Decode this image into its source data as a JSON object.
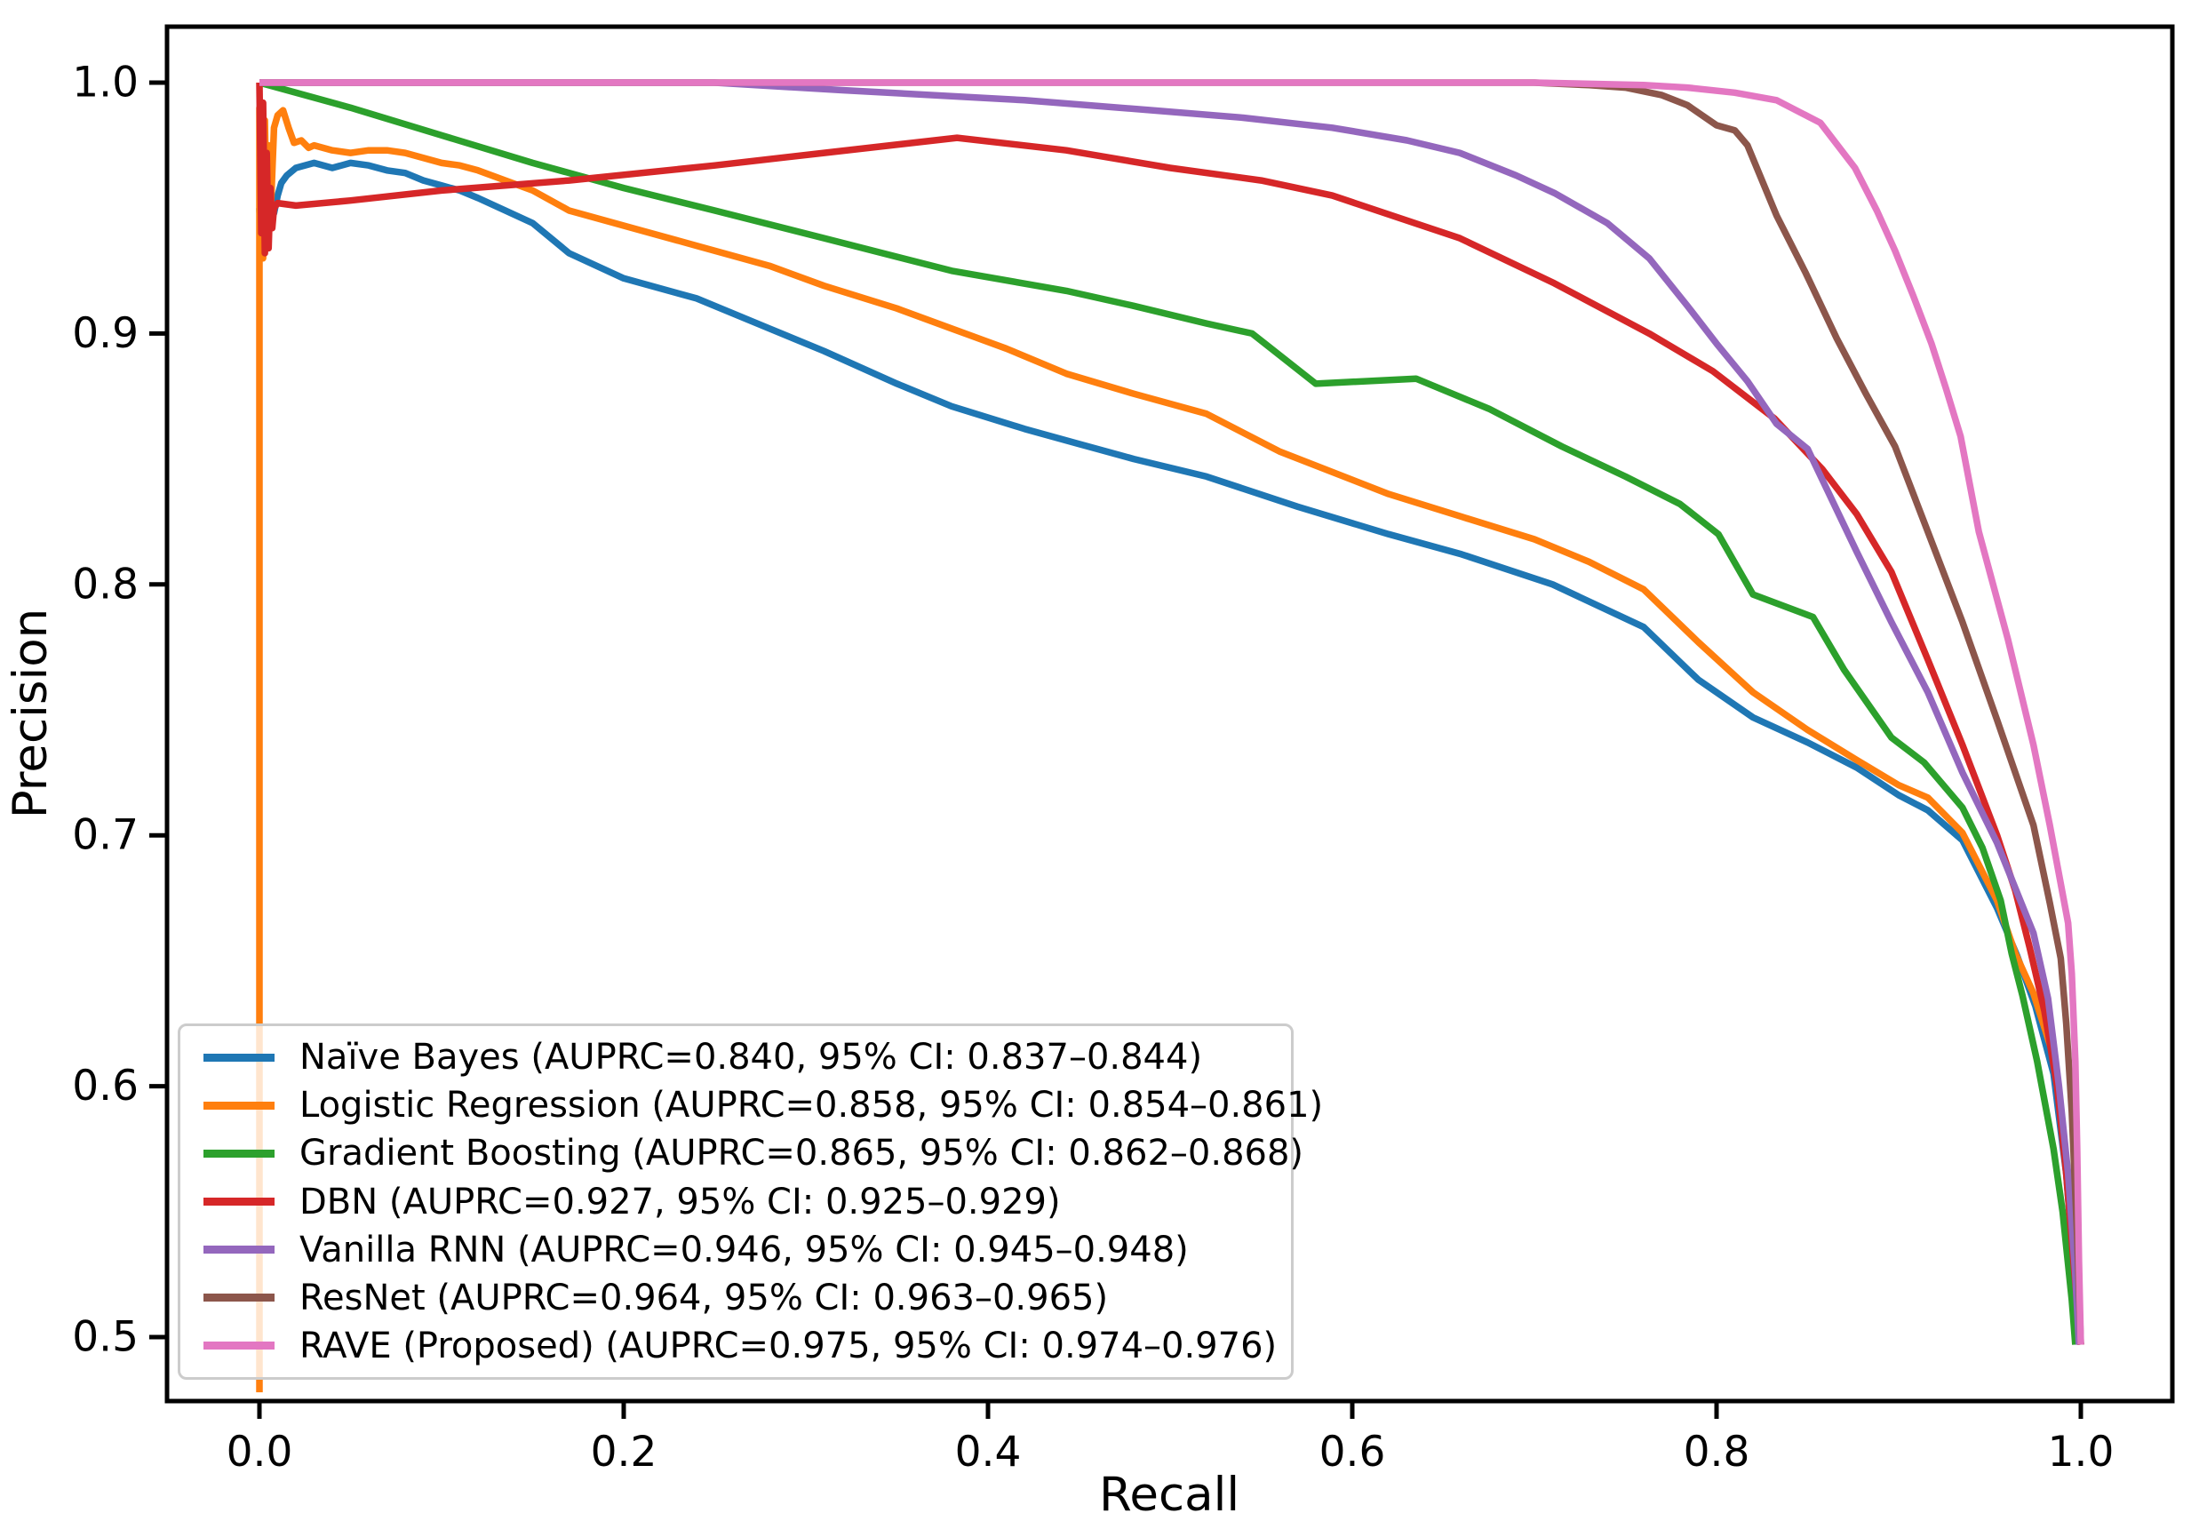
{
  "figure": {
    "background": "#ffffff",
    "spine_color": "#000000",
    "tick_color": "#000000"
  },
  "chart_data": {
    "type": "line",
    "title": "",
    "xlabel": "Recall",
    "ylabel": "Precision",
    "grid": false,
    "legend_position": "lower left",
    "xlim": [
      -0.05,
      1.05
    ],
    "ylim": [
      0.4745,
      1.0225
    ],
    "x_ticks": [
      0.0,
      0.2,
      0.4,
      0.6,
      0.8,
      1.0
    ],
    "x_tick_labels": [
      "0.0",
      "0.2",
      "0.4",
      "0.6",
      "0.8",
      "1.0"
    ],
    "y_ticks": [
      0.5,
      0.6,
      0.7,
      0.8,
      0.9,
      1.0
    ],
    "y_tick_labels": [
      "0.5",
      "0.6",
      "0.7",
      "0.8",
      "0.9",
      "1.0"
    ],
    "series": [
      {
        "name": "Naive Bayes",
        "label": "Naïve Bayes (AUPRC=0.840, 95% CI: 0.837–0.844)",
        "auprc": 0.84,
        "ci_95": "0.837–0.844",
        "color": "#1f77b4",
        "points": [
          [
            0.0,
            0.95
          ],
          [
            0.001,
            0.93
          ],
          [
            0.002,
            0.958
          ],
          [
            0.003,
            0.938
          ],
          [
            0.004,
            0.955
          ],
          [
            0.005,
            0.942
          ],
          [
            0.006,
            0.952
          ],
          [
            0.008,
            0.948
          ],
          [
            0.01,
            0.955
          ],
          [
            0.012,
            0.96
          ],
          [
            0.015,
            0.963
          ],
          [
            0.02,
            0.966
          ],
          [
            0.03,
            0.968
          ],
          [
            0.04,
            0.966
          ],
          [
            0.05,
            0.968
          ],
          [
            0.06,
            0.967
          ],
          [
            0.07,
            0.965
          ],
          [
            0.08,
            0.964
          ],
          [
            0.09,
            0.961
          ],
          [
            0.1,
            0.959
          ],
          [
            0.11,
            0.957
          ],
          [
            0.12,
            0.954
          ],
          [
            0.135,
            0.949
          ],
          [
            0.15,
            0.944
          ],
          [
            0.17,
            0.932
          ],
          [
            0.2,
            0.922
          ],
          [
            0.24,
            0.914
          ],
          [
            0.28,
            0.902
          ],
          [
            0.31,
            0.893
          ],
          [
            0.35,
            0.88
          ],
          [
            0.38,
            0.871
          ],
          [
            0.42,
            0.862
          ],
          [
            0.45,
            0.856
          ],
          [
            0.48,
            0.85
          ],
          [
            0.52,
            0.843
          ],
          [
            0.57,
            0.831
          ],
          [
            0.62,
            0.82
          ],
          [
            0.66,
            0.812
          ],
          [
            0.71,
            0.8
          ],
          [
            0.76,
            0.783
          ],
          [
            0.79,
            0.762
          ],
          [
            0.82,
            0.747
          ],
          [
            0.85,
            0.737
          ],
          [
            0.877,
            0.727
          ],
          [
            0.9,
            0.716
          ],
          [
            0.916,
            0.71
          ],
          [
            0.935,
            0.698
          ],
          [
            0.954,
            0.671
          ],
          [
            0.965,
            0.652
          ],
          [
            0.975,
            0.632
          ],
          [
            0.985,
            0.605
          ],
          [
            0.992,
            0.565
          ],
          [
            0.997,
            0.52
          ],
          [
            1.0,
            0.497
          ]
        ]
      },
      {
        "name": "Logistic Regression",
        "label": "Logistic Regression (AUPRC=0.858, 95% CI: 0.854–0.861)",
        "auprc": 0.858,
        "ci_95": "0.854–0.861",
        "color": "#ff7f0e",
        "points": [
          [
            0.0,
            0.478
          ],
          [
            0.0,
            0.99
          ],
          [
            0.002,
            0.93
          ],
          [
            0.003,
            0.985
          ],
          [
            0.004,
            0.94
          ],
          [
            0.005,
            0.975
          ],
          [
            0.006,
            0.945
          ],
          [
            0.008,
            0.982
          ],
          [
            0.01,
            0.987
          ],
          [
            0.013,
            0.989
          ],
          [
            0.016,
            0.982
          ],
          [
            0.019,
            0.976
          ],
          [
            0.023,
            0.977
          ],
          [
            0.027,
            0.974
          ],
          [
            0.03,
            0.975
          ],
          [
            0.04,
            0.973
          ],
          [
            0.05,
            0.972
          ],
          [
            0.06,
            0.973
          ],
          [
            0.07,
            0.973
          ],
          [
            0.08,
            0.972
          ],
          [
            0.09,
            0.97
          ],
          [
            0.1,
            0.968
          ],
          [
            0.11,
            0.967
          ],
          [
            0.12,
            0.965
          ],
          [
            0.135,
            0.961
          ],
          [
            0.15,
            0.957
          ],
          [
            0.17,
            0.949
          ],
          [
            0.2,
            0.943
          ],
          [
            0.24,
            0.935
          ],
          [
            0.28,
            0.927
          ],
          [
            0.31,
            0.919
          ],
          [
            0.35,
            0.91
          ],
          [
            0.38,
            0.902
          ],
          [
            0.41,
            0.894
          ],
          [
            0.443,
            0.884
          ],
          [
            0.48,
            0.876
          ],
          [
            0.52,
            0.868
          ],
          [
            0.56,
            0.853
          ],
          [
            0.62,
            0.836
          ],
          [
            0.66,
            0.827
          ],
          [
            0.7,
            0.818
          ],
          [
            0.73,
            0.809
          ],
          [
            0.76,
            0.798
          ],
          [
            0.79,
            0.777
          ],
          [
            0.82,
            0.757
          ],
          [
            0.85,
            0.742
          ],
          [
            0.877,
            0.73
          ],
          [
            0.9,
            0.72
          ],
          [
            0.916,
            0.715
          ],
          [
            0.935,
            0.701
          ],
          [
            0.954,
            0.674
          ],
          [
            0.964,
            0.653
          ],
          [
            0.974,
            0.637
          ],
          [
            0.985,
            0.612
          ],
          [
            0.992,
            0.57
          ],
          [
            0.997,
            0.525
          ],
          [
            1.0,
            0.497
          ]
        ]
      },
      {
        "name": "Gradient Boosting",
        "label": "Gradient Boosting (AUPRC=0.865, 95% CI: 0.862–0.868)",
        "auprc": 0.865,
        "ci_95": "0.862–0.868",
        "color": "#2ca02c",
        "points": [
          [
            0.0,
            1.0
          ],
          [
            0.05,
            0.99
          ],
          [
            0.1,
            0.979
          ],
          [
            0.15,
            0.968
          ],
          [
            0.2,
            0.958
          ],
          [
            0.25,
            0.949
          ],
          [
            0.31,
            0.938
          ],
          [
            0.38,
            0.925
          ],
          [
            0.443,
            0.917
          ],
          [
            0.48,
            0.911
          ],
          [
            0.52,
            0.904
          ],
          [
            0.545,
            0.9
          ],
          [
            0.58,
            0.88
          ],
          [
            0.635,
            0.882
          ],
          [
            0.655,
            0.876
          ],
          [
            0.675,
            0.87
          ],
          [
            0.715,
            0.855
          ],
          [
            0.75,
            0.843
          ],
          [
            0.78,
            0.832
          ],
          [
            0.801,
            0.82
          ],
          [
            0.82,
            0.796
          ],
          [
            0.853,
            0.787
          ],
          [
            0.87,
            0.766
          ],
          [
            0.896,
            0.739
          ],
          [
            0.914,
            0.729
          ],
          [
            0.935,
            0.711
          ],
          [
            0.946,
            0.695
          ],
          [
            0.956,
            0.674
          ],
          [
            0.962,
            0.653
          ],
          [
            0.968,
            0.636
          ],
          [
            0.976,
            0.61
          ],
          [
            0.985,
            0.575
          ],
          [
            0.99,
            0.55
          ],
          [
            0.995,
            0.515
          ],
          [
            0.997,
            0.497
          ]
        ]
      },
      {
        "name": "DBN",
        "label": "DBN (AUPRC=0.927, 95% CI: 0.925–0.929)",
        "auprc": 0.927,
        "ci_95": "0.925–0.929",
        "color": "#d62728",
        "points": [
          [
            0.0,
            1.0
          ],
          [
            0.001,
            0.94
          ],
          [
            0.002,
            0.992
          ],
          [
            0.003,
            0.932
          ],
          [
            0.004,
            0.972
          ],
          [
            0.005,
            0.934
          ],
          [
            0.006,
            0.958
          ],
          [
            0.007,
            0.942
          ],
          [
            0.008,
            0.95
          ],
          [
            0.01,
            0.952
          ],
          [
            0.02,
            0.951
          ],
          [
            0.05,
            0.953
          ],
          [
            0.1,
            0.957
          ],
          [
            0.17,
            0.961
          ],
          [
            0.25,
            0.967
          ],
          [
            0.31,
            0.972
          ],
          [
            0.383,
            0.978
          ],
          [
            0.443,
            0.973
          ],
          [
            0.5,
            0.966
          ],
          [
            0.55,
            0.961
          ],
          [
            0.589,
            0.955
          ],
          [
            0.659,
            0.938
          ],
          [
            0.711,
            0.92
          ],
          [
            0.763,
            0.9
          ],
          [
            0.798,
            0.885
          ],
          [
            0.832,
            0.866
          ],
          [
            0.858,
            0.846
          ],
          [
            0.877,
            0.828
          ],
          [
            0.896,
            0.805
          ],
          [
            0.916,
            0.77
          ],
          [
            0.935,
            0.736
          ],
          [
            0.954,
            0.7
          ],
          [
            0.964,
            0.678
          ],
          [
            0.972,
            0.655
          ],
          [
            0.98,
            0.63
          ],
          [
            0.987,
            0.6
          ],
          [
            0.992,
            0.565
          ],
          [
            0.996,
            0.53
          ],
          [
            1.0,
            0.497
          ]
        ]
      },
      {
        "name": "Vanilla RNN",
        "label": "Vanilla RNN (AUPRC=0.946, 95% CI: 0.945–0.948)",
        "auprc": 0.946,
        "ci_95": "0.945–0.948",
        "color": "#9467bd",
        "points": [
          [
            0.0,
            1.0
          ],
          [
            0.25,
            1.0
          ],
          [
            0.32,
            0.997
          ],
          [
            0.42,
            0.993
          ],
          [
            0.49,
            0.989
          ],
          [
            0.54,
            0.986
          ],
          [
            0.589,
            0.982
          ],
          [
            0.63,
            0.977
          ],
          [
            0.659,
            0.972
          ],
          [
            0.69,
            0.963
          ],
          [
            0.711,
            0.956
          ],
          [
            0.74,
            0.944
          ],
          [
            0.763,
            0.93
          ],
          [
            0.784,
            0.911
          ],
          [
            0.8,
            0.896
          ],
          [
            0.817,
            0.881
          ],
          [
            0.833,
            0.864
          ],
          [
            0.85,
            0.854
          ],
          [
            0.877,
            0.813
          ],
          [
            0.896,
            0.785
          ],
          [
            0.916,
            0.757
          ],
          [
            0.935,
            0.725
          ],
          [
            0.954,
            0.697
          ],
          [
            0.974,
            0.661
          ],
          [
            0.982,
            0.635
          ],
          [
            0.988,
            0.6
          ],
          [
            0.993,
            0.565
          ],
          [
            0.997,
            0.525
          ],
          [
            0.999,
            0.497
          ]
        ]
      },
      {
        "name": "ResNet",
        "label": "ResNet (AUPRC=0.964, 95% CI: 0.963–0.965)",
        "auprc": 0.964,
        "ci_95": "0.963–0.965",
        "color": "#8c564b",
        "points": [
          [
            0.0,
            1.0
          ],
          [
            0.5,
            1.0
          ],
          [
            0.7,
            1.0
          ],
          [
            0.73,
            0.999
          ],
          [
            0.75,
            0.998
          ],
          [
            0.77,
            0.995
          ],
          [
            0.784,
            0.991
          ],
          [
            0.8,
            0.983
          ],
          [
            0.81,
            0.981
          ],
          [
            0.817,
            0.975
          ],
          [
            0.833,
            0.947
          ],
          [
            0.849,
            0.924
          ],
          [
            0.866,
            0.898
          ],
          [
            0.882,
            0.876
          ],
          [
            0.898,
            0.855
          ],
          [
            0.916,
            0.821
          ],
          [
            0.935,
            0.785
          ],
          [
            0.954,
            0.746
          ],
          [
            0.974,
            0.704
          ],
          [
            0.983,
            0.673
          ],
          [
            0.989,
            0.651
          ],
          [
            0.992,
            0.625
          ],
          [
            0.995,
            0.59
          ],
          [
            0.998,
            0.54
          ],
          [
            1.0,
            0.497
          ]
        ]
      },
      {
        "name": "RAVE (Proposed)",
        "label": "RAVE (Proposed) (AUPRC=0.975, 95% CI: 0.974–0.976)",
        "auprc": 0.975,
        "ci_95": "0.974–0.976",
        "color": "#e377c2",
        "points": [
          [
            0.0,
            1.0
          ],
          [
            0.5,
            1.0
          ],
          [
            0.7,
            1.0
          ],
          [
            0.76,
            0.999
          ],
          [
            0.784,
            0.998
          ],
          [
            0.81,
            0.996
          ],
          [
            0.833,
            0.993
          ],
          [
            0.857,
            0.984
          ],
          [
            0.876,
            0.966
          ],
          [
            0.888,
            0.949
          ],
          [
            0.898,
            0.933
          ],
          [
            0.908,
            0.915
          ],
          [
            0.918,
            0.896
          ],
          [
            0.926,
            0.878
          ],
          [
            0.934,
            0.859
          ],
          [
            0.944,
            0.821
          ],
          [
            0.96,
            0.778
          ],
          [
            0.974,
            0.736
          ],
          [
            0.983,
            0.704
          ],
          [
            0.993,
            0.665
          ],
          [
            0.995,
            0.645
          ],
          [
            0.997,
            0.61
          ],
          [
            0.998,
            0.575
          ],
          [
            0.999,
            0.53
          ],
          [
            1.0,
            0.497
          ]
        ]
      }
    ]
  }
}
